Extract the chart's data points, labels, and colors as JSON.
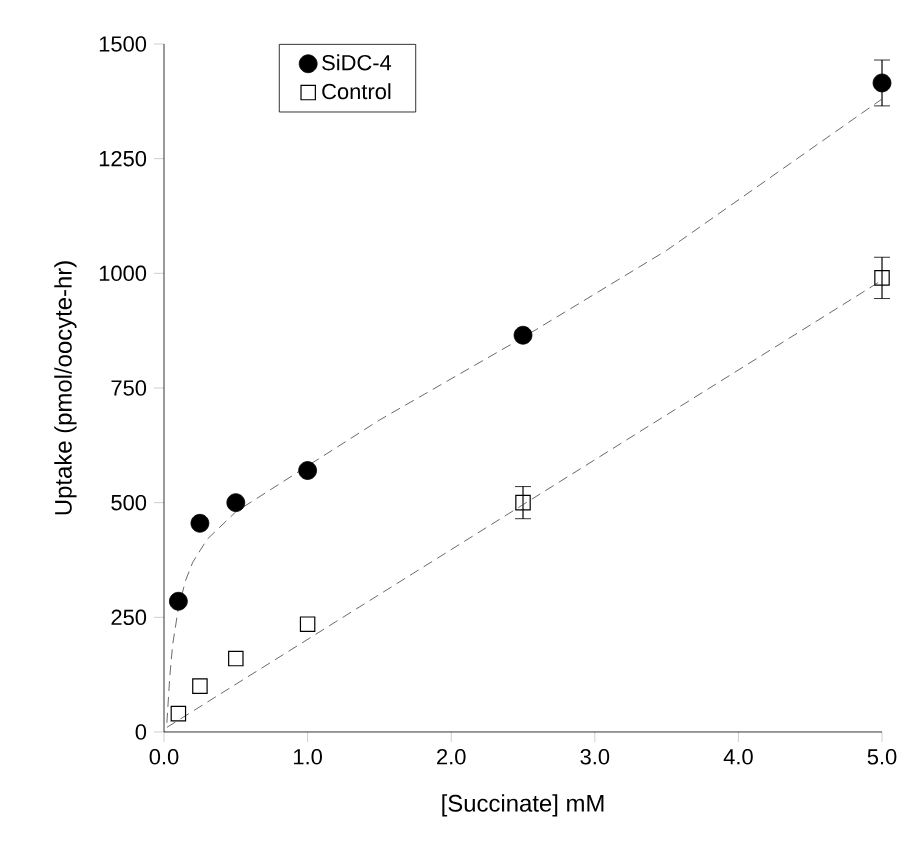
{
  "chart_data": {
    "type": "scatter",
    "xlabel": "[Succinate] mM",
    "ylabel": "Uptake (pmol/oocyte-hr)",
    "xlim": [
      0,
      5
    ],
    "ylim": [
      0,
      1500
    ],
    "xticks": [
      {
        "value": 0,
        "label": "0.0"
      },
      {
        "value": 1,
        "label": "1.0"
      },
      {
        "value": 2,
        "label": "2.0"
      },
      {
        "value": 3,
        "label": "3.0"
      },
      {
        "value": 4,
        "label": "4.0"
      },
      {
        "value": 5,
        "label": "5.0"
      }
    ],
    "yticks": [
      0,
      250,
      500,
      750,
      1000,
      1250,
      1500
    ],
    "grid": false,
    "legend": "top left",
    "series": [
      {
        "name": "SiDC-4",
        "marker": "circle",
        "color": "#000000",
        "x": [
          0.1,
          0.25,
          0.5,
          1.0,
          2.5,
          5.0
        ],
        "values": [
          285,
          455,
          500,
          570,
          865,
          1415
        ],
        "errors": [
          null,
          null,
          null,
          null,
          null,
          50
        ]
      },
      {
        "name": "Control",
        "marker": "square",
        "color": "#000000",
        "x": [
          0.1,
          0.25,
          0.5,
          1.0,
          2.5,
          5.0
        ],
        "values": [
          40,
          100,
          160,
          235,
          500,
          990
        ],
        "errors": [
          null,
          null,
          null,
          null,
          35,
          45
        ]
      },
      {
        "type": "line",
        "marker": "none",
        "line_style": "dashed",
        "color": "#444444",
        "x": [
          0.02,
          0.04,
          0.06,
          0.1,
          0.15,
          0.2,
          0.3,
          0.5,
          0.75,
          1.0,
          1.5,
          2.0,
          2.5,
          3.5,
          5.0
        ],
        "values": [
          20,
          120,
          190,
          270,
          330,
          370,
          420,
          480,
          530,
          580,
          680,
          770,
          860,
          1050,
          1380
        ]
      },
      {
        "type": "line",
        "marker": "none",
        "line_style": "dashed",
        "color": "#444444",
        "x": [
          0.02,
          5.0
        ],
        "values": [
          10,
          985
        ]
      }
    ]
  }
}
